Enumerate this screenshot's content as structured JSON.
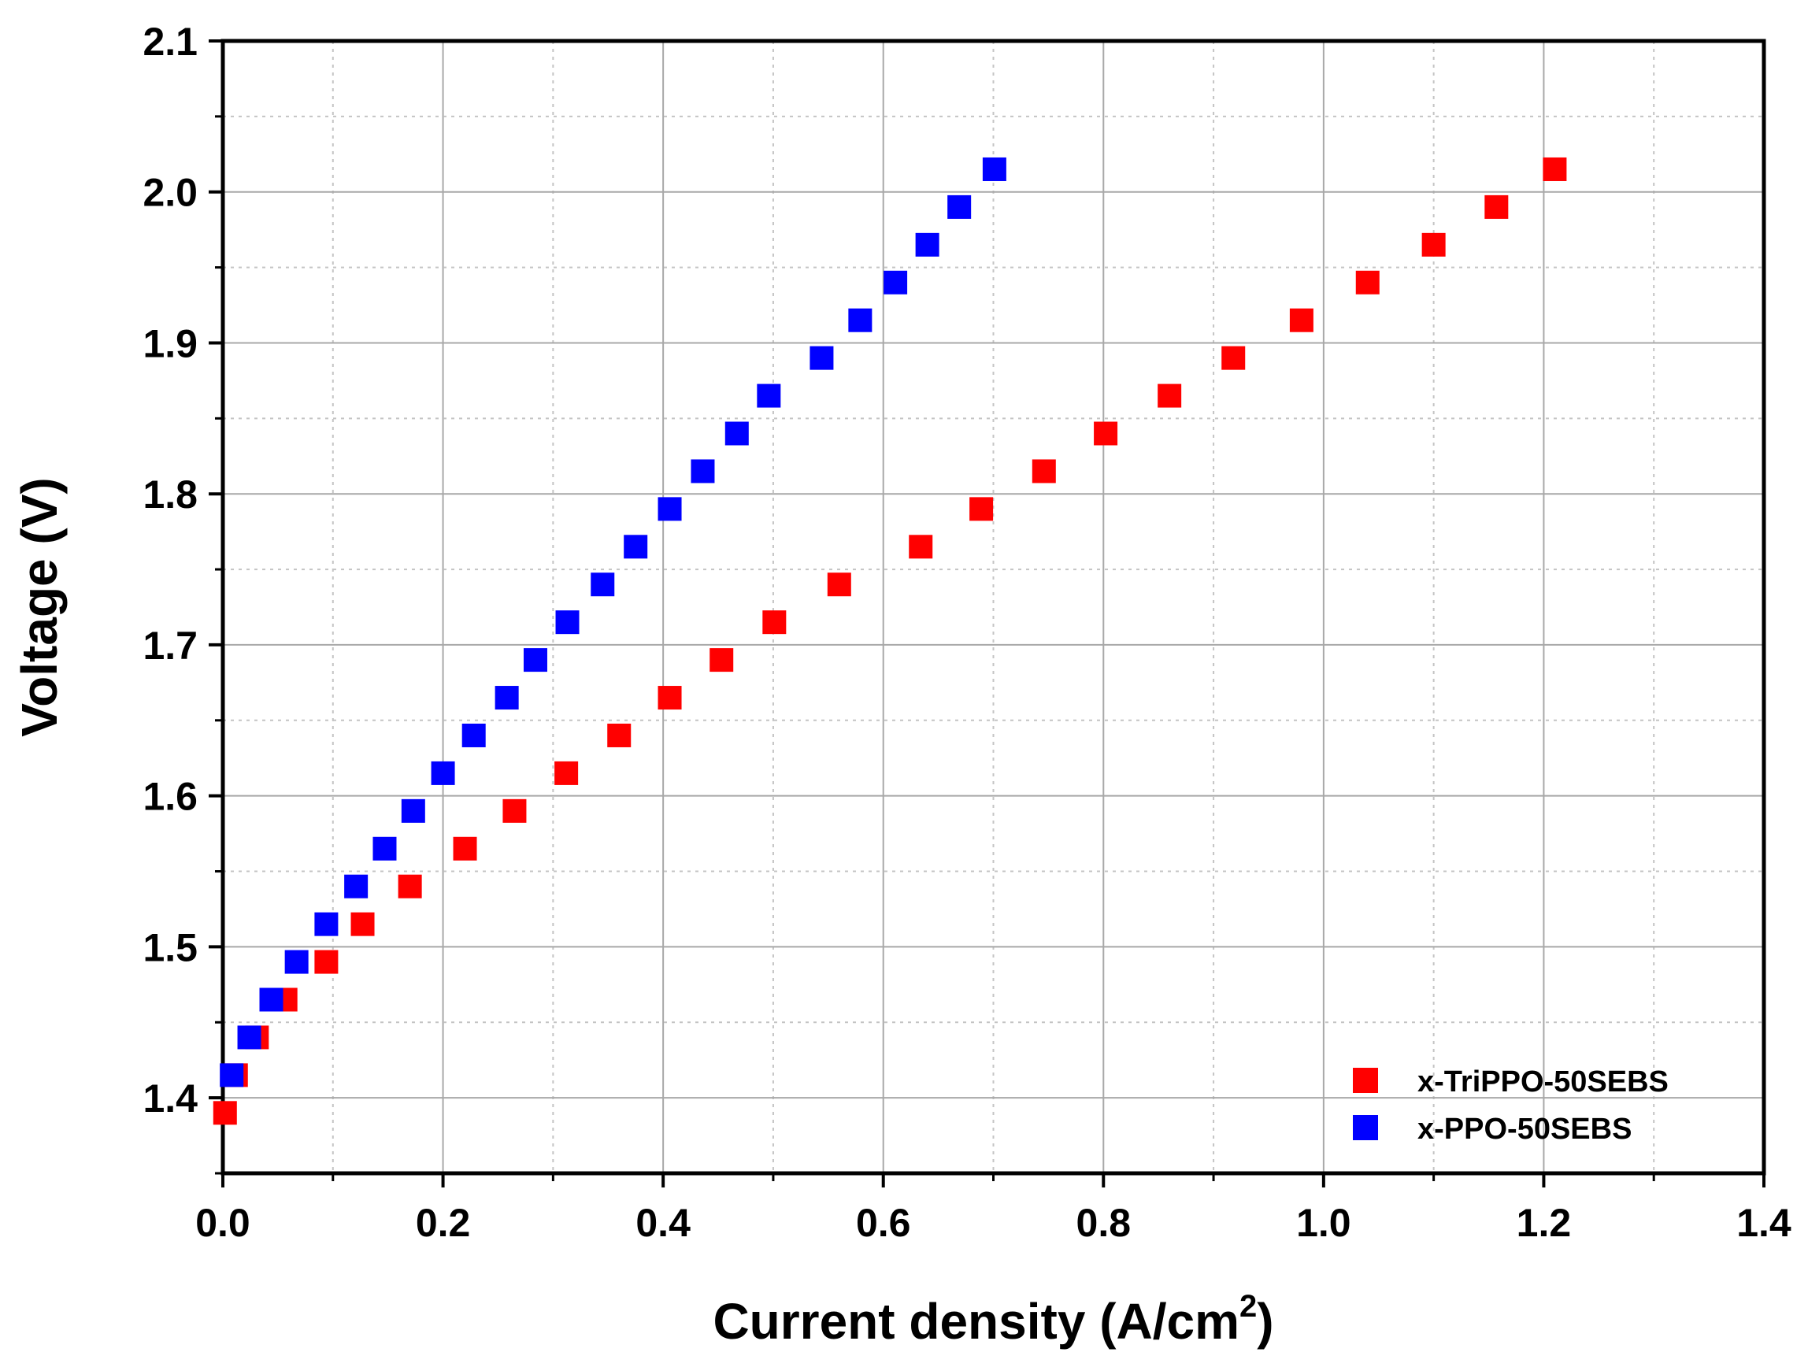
{
  "chart_data": {
    "type": "scatter",
    "xlabel": "Current density (A/cm",
    "xlabel_superscript": "2",
    "xlabel_suffix": ")",
    "ylabel": "Voltage (V)",
    "xlim": [
      0.0,
      1.4
    ],
    "ylim": [
      1.35,
      2.1
    ],
    "x_ticks": [
      0.0,
      0.2,
      0.4,
      0.6,
      0.8,
      1.0,
      1.2,
      1.4
    ],
    "x_tick_labels": [
      "0.0",
      "0.2",
      "0.4",
      "0.6",
      "0.8",
      "1.0",
      "1.2",
      "1.4"
    ],
    "y_ticks": [
      1.4,
      1.5,
      1.6,
      1.7,
      1.8,
      1.9,
      2.0,
      2.1
    ],
    "y_tick_labels": [
      "1.4",
      "1.5",
      "1.6",
      "1.7",
      "1.8",
      "1.9",
      "2.0",
      "2.1"
    ],
    "grid": true,
    "legend_position": "bottom-right",
    "series": [
      {
        "name": "x-TriPPO-50SEBS",
        "color": "#ff0000",
        "marker": "square",
        "points": [
          [
            0.002,
            1.39
          ],
          [
            0.012,
            1.415
          ],
          [
            0.031,
            1.44
          ],
          [
            0.057,
            1.465
          ],
          [
            0.094,
            1.49
          ],
          [
            0.127,
            1.515
          ],
          [
            0.17,
            1.54
          ],
          [
            0.22,
            1.565
          ],
          [
            0.265,
            1.59
          ],
          [
            0.312,
            1.615
          ],
          [
            0.36,
            1.64
          ],
          [
            0.406,
            1.665
          ],
          [
            0.453,
            1.69
          ],
          [
            0.501,
            1.715
          ],
          [
            0.56,
            1.74
          ],
          [
            0.634,
            1.765
          ],
          [
            0.689,
            1.79
          ],
          [
            0.746,
            1.815
          ],
          [
            0.802,
            1.84
          ],
          [
            0.86,
            1.865
          ],
          [
            0.918,
            1.89
          ],
          [
            0.98,
            1.915
          ],
          [
            1.04,
            1.94
          ],
          [
            1.1,
            1.965
          ],
          [
            1.157,
            1.99
          ],
          [
            1.21,
            2.015
          ]
        ]
      },
      {
        "name": "x-PPO-50SEBS",
        "color": "#0000ff",
        "marker": "square",
        "points": [
          [
            0.008,
            1.415
          ],
          [
            0.024,
            1.44
          ],
          [
            0.044,
            1.465
          ],
          [
            0.067,
            1.49
          ],
          [
            0.094,
            1.515
          ],
          [
            0.121,
            1.54
          ],
          [
            0.147,
            1.565
          ],
          [
            0.173,
            1.59
          ],
          [
            0.2,
            1.615
          ],
          [
            0.228,
            1.64
          ],
          [
            0.258,
            1.665
          ],
          [
            0.284,
            1.69
          ],
          [
            0.313,
            1.715
          ],
          [
            0.345,
            1.74
          ],
          [
            0.375,
            1.765
          ],
          [
            0.406,
            1.79
          ],
          [
            0.436,
            1.815
          ],
          [
            0.467,
            1.84
          ],
          [
            0.496,
            1.865
          ],
          [
            0.544,
            1.89
          ],
          [
            0.579,
            1.915
          ],
          [
            0.611,
            1.94
          ],
          [
            0.64,
            1.965
          ],
          [
            0.669,
            1.99
          ],
          [
            0.701,
            2.015
          ]
        ]
      }
    ]
  }
}
